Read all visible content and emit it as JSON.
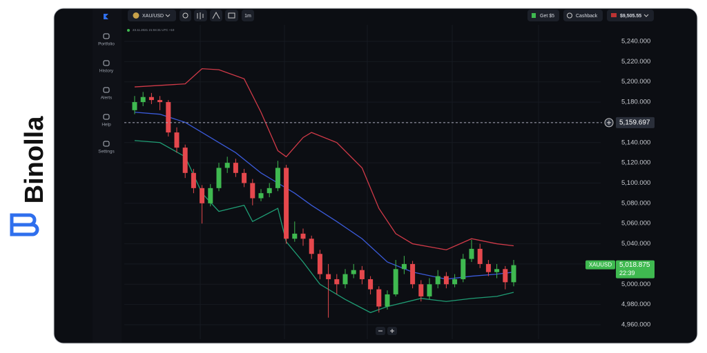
{
  "brand": "Binolla",
  "sidebar": [
    {
      "label": "Portfolio"
    },
    {
      "label": "History"
    },
    {
      "label": "Alerts"
    },
    {
      "label": "Help"
    },
    {
      "label": "Settings"
    }
  ],
  "toolbar": {
    "symbol": "XAU/USD",
    "interval": "1m",
    "bonus": "Get $5",
    "cashback": "Cashback",
    "balance": "$9,505.55"
  },
  "timestamp": "23.11.2021 21:04:31 UTC +10",
  "chart_data": {
    "type": "candlestick",
    "x": [
      0,
      1,
      2,
      3,
      4,
      5,
      6,
      7,
      8,
      9,
      10,
      11,
      12,
      13,
      14,
      15,
      16,
      17,
      18,
      19,
      20,
      21,
      22,
      23,
      24,
      25,
      26,
      27,
      28,
      29,
      30,
      31,
      32,
      33,
      34,
      35,
      36,
      37,
      38,
      39,
      40,
      41,
      42,
      43,
      44,
      45
    ],
    "open": [
      5172,
      5180,
      5185,
      5182,
      5180,
      5150,
      5135,
      5110,
      5095,
      5080,
      5095,
      5115,
      5120,
      5110,
      5100,
      5085,
      5090,
      5095,
      5115,
      5045,
      5050,
      5045,
      5030,
      5010,
      5005,
      5000,
      5010,
      5014,
      5005,
      4995,
      4978,
      4990,
      5015,
      5020,
      5000,
      4988,
      5000,
      5008,
      5000,
      5005,
      5025,
      5035,
      5020,
      5012,
      5015,
      5002
    ],
    "high": [
      5186,
      5190,
      5189,
      5186,
      5182,
      5155,
      5138,
      5114,
      5098,
      5099,
      5120,
      5126,
      5124,
      5114,
      5104,
      5094,
      5100,
      5122,
      5118,
      5062,
      5055,
      5048,
      5034,
      5020,
      5010,
      5015,
      5020,
      5018,
      5008,
      4998,
      4994,
      5024,
      5028,
      5023,
      5004,
      5006,
      5014,
      5012,
      5010,
      5030,
      5044,
      5040,
      5024,
      5020,
      5018,
      5024
    ],
    "low": [
      5168,
      5176,
      5178,
      5172,
      5146,
      5130,
      5105,
      5090,
      5060,
      5077,
      5092,
      5110,
      5106,
      5096,
      5078,
      5082,
      5086,
      5092,
      5040,
      5042,
      5038,
      5025,
      5005,
      4967,
      4990,
      4996,
      5006,
      5000,
      4990,
      4972,
      4975,
      4988,
      5010,
      4996,
      4983,
      4985,
      4996,
      4996,
      4997,
      5002,
      5022,
      5016,
      5008,
      5006,
      4995,
      4998
    ],
    "close": [
      5180,
      5185,
      5182,
      5180,
      5150,
      5135,
      5110,
      5095,
      5080,
      5095,
      5115,
      5120,
      5110,
      5100,
      5085,
      5090,
      5095,
      5115,
      5045,
      5050,
      5045,
      5030,
      5010,
      5005,
      5000,
      5010,
      5014,
      5005,
      4995,
      4978,
      4990,
      5015,
      5020,
      5000,
      4988,
      5000,
      5008,
      5000,
      5005,
      5025,
      5035,
      5020,
      5012,
      5015,
      5002,
      5018.875
    ],
    "up_color": "#3fb950",
    "down_color": "#e5484d",
    "xlim": [
      0,
      45
    ],
    "bands": [
      {
        "color": "#d13a48",
        "x": [
          0,
          6,
          8,
          10,
          13,
          15,
          17,
          18,
          20,
          21,
          24,
          27,
          29,
          31,
          33,
          37,
          40,
          43,
          45
        ],
        "values": [
          5195,
          5198,
          5213,
          5212,
          5203,
          5170,
          5132,
          5126,
          5145,
          5150,
          5140,
          5115,
          5075,
          5050,
          5040,
          5034,
          5045,
          5040,
          5038
        ]
      },
      {
        "color": "#3b5bdb",
        "x": [
          0,
          3,
          6,
          9,
          12,
          15,
          17,
          19,
          21,
          24,
          27,
          30,
          33,
          37,
          40,
          43,
          45
        ],
        "values": [
          5170,
          5168,
          5160,
          5145,
          5130,
          5110,
          5100,
          5090,
          5078,
          5062,
          5045,
          5022,
          5012,
          5005,
          5008,
          5010,
          5012
        ]
      },
      {
        "color": "#1f9e75",
        "x": [
          0,
          3,
          6,
          8,
          10,
          13,
          14,
          17,
          18,
          20,
          22,
          25,
          28,
          30,
          34,
          37,
          40,
          43,
          45
        ],
        "values": [
          5142,
          5140,
          5126,
          5090,
          5072,
          5078,
          5062,
          5075,
          5042,
          5022,
          5000,
          4985,
          4972,
          4978,
          4986,
          4983,
          4986,
          4988,
          4992
        ]
      }
    ],
    "ylim": [
      4960,
      5240
    ],
    "yticks": [
      {
        "value": 4960,
        "label": "4,960.000"
      },
      {
        "value": 4980,
        "label": "4,980.000"
      },
      {
        "value": 5000,
        "label": "5,000.000"
      },
      {
        "value": 5020,
        "label": "5,020.000"
      },
      {
        "value": 5040,
        "label": "5,040.000"
      },
      {
        "value": 5060,
        "label": "5,060.000"
      },
      {
        "value": 5080,
        "label": "5,080.000"
      },
      {
        "value": 5100,
        "label": "5,100.000"
      },
      {
        "value": 5120,
        "label": "5,120.000"
      },
      {
        "value": 5140,
        "label": "5,140.000"
      },
      {
        "value": 5160,
        "label": "5,160.000"
      },
      {
        "value": 5180,
        "label": "5,180.000"
      },
      {
        "value": 5200,
        "label": "5,200.000"
      },
      {
        "value": 5220,
        "label": "5,220.000"
      },
      {
        "value": 5240,
        "label": "5,240.000"
      }
    ],
    "grid": true,
    "crosshair": {
      "value": 5159.697,
      "label": "5,159.697"
    },
    "price_tag": {
      "symbol": "XAUUSD",
      "value": 5018.875,
      "label": "5,018.875",
      "timer": "22:39"
    }
  }
}
